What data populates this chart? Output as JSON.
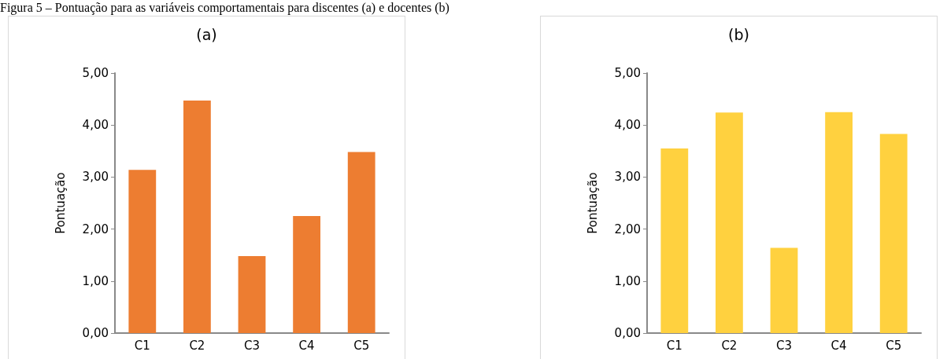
{
  "chart_data": [
    {
      "type": "bar",
      "title": "(a)",
      "ylabel": "Pontuação",
      "categories": [
        "C1",
        "C2",
        "C3",
        "C4",
        "C5"
      ],
      "values": [
        3.14,
        4.47,
        1.48,
        2.25,
        3.48
      ],
      "color": "#ed7d31",
      "ylim": [
        0,
        5
      ],
      "yticks": [
        {
          "value": 0,
          "label": "0,00"
        },
        {
          "value": 1,
          "label": "1,00"
        },
        {
          "value": 2,
          "label": "2,00"
        },
        {
          "value": 3,
          "label": "3,00"
        },
        {
          "value": 4,
          "label": "4,00"
        },
        {
          "value": 5,
          "label": "5,00"
        }
      ],
      "grid": false,
      "annotations": [
        "Figura 5 – Pontuação para as variáveis comportamentais para discentes (a) e docentes (b)"
      ]
    },
    {
      "type": "bar",
      "title": "(b)",
      "ylabel": "Pontuação",
      "categories": [
        "C1",
        "C2",
        "C3",
        "C4",
        "C5"
      ],
      "values": [
        3.55,
        4.24,
        1.64,
        4.25,
        3.83
      ],
      "color": "#ffd13f",
      "ylim": [
        0,
        5
      ],
      "yticks": [
        {
          "value": 0,
          "label": "0,00"
        },
        {
          "value": 1,
          "label": "1,00"
        },
        {
          "value": 2,
          "label": "2,00"
        },
        {
          "value": 3,
          "label": "3,00"
        },
        {
          "value": 4,
          "label": "4,00"
        },
        {
          "value": 5,
          "label": "5,00"
        }
      ],
      "grid": false
    }
  ]
}
